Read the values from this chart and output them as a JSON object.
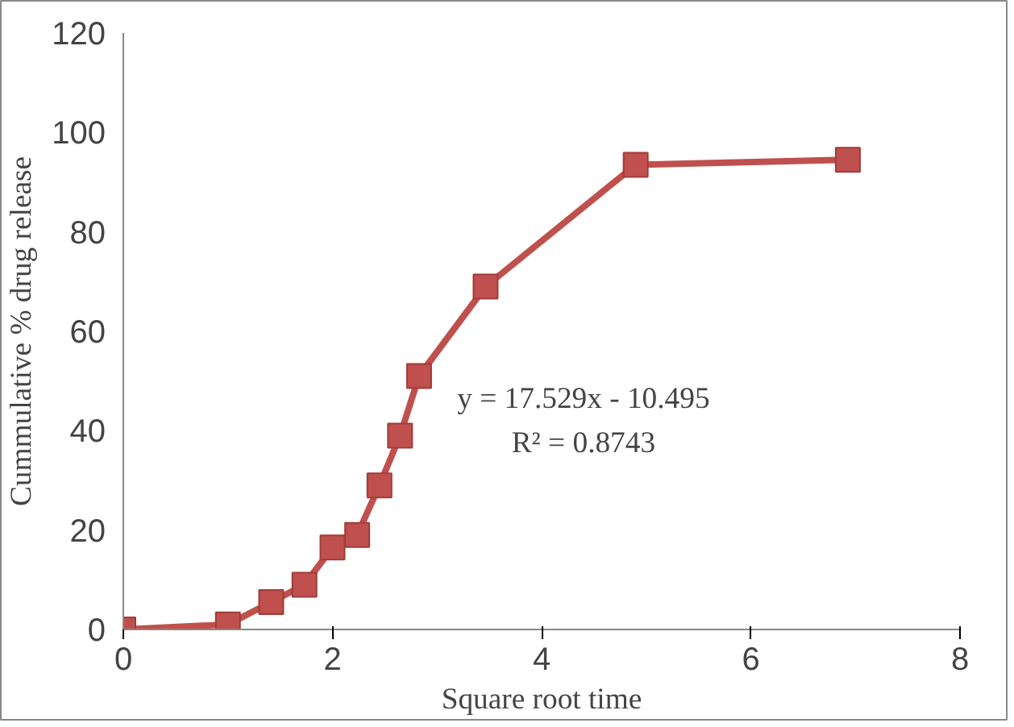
{
  "chart_data": {
    "type": "line",
    "xlabel": "Square root time",
    "ylabel": "Cummulative % drug release",
    "x": [
      0,
      1,
      1.414,
      1.732,
      2,
      2.236,
      2.449,
      2.646,
      2.828,
      3.464,
      4.899,
      6.928
    ],
    "series": [
      {
        "color": "#c0504d",
        "values": [
          0,
          1,
          5.5,
          9,
          16.5,
          19,
          29,
          39,
          51,
          69,
          93.5,
          94.5
        ]
      }
    ],
    "xlim": [
      0,
      8
    ],
    "xticks": [
      0,
      2,
      4,
      6,
      8
    ],
    "ylim": [
      0,
      120
    ],
    "yticks": [
      0,
      20,
      40,
      60,
      80,
      100,
      120
    ],
    "marker": "square",
    "line_style": "solid",
    "annotations": [
      "y = 17.529x - 10.495",
      "R² = 0.8743"
    ]
  }
}
